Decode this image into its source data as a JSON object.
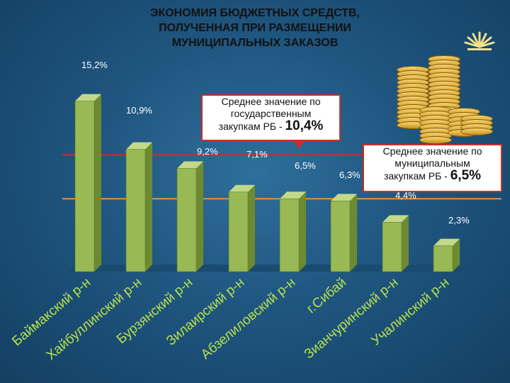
{
  "title_lines": [
    "ЭКОНОМИЯ БЮДЖЕТНЫХ СРЕДСТВ,",
    "ПОЛУЧЕННАЯ ПРИ РАЗМЕЩЕНИИ",
    "МУНИЦИПАЛЬНЫХ ЗАКАЗОВ"
  ],
  "callouts": {
    "state": {
      "lines": [
        "Среднее значение по",
        "государственным",
        "закупкам РБ - "
      ],
      "value": "10,4%"
    },
    "municipal": {
      "lines": [
        "Среднее значение по",
        "муниципальным",
        "закупкам РБ - "
      ],
      "value": "6,5%"
    }
  },
  "chart_data": {
    "type": "bar",
    "categories": [
      "Баймакский р-н",
      "Хайбуллинский р-н",
      "Бурзянский р-н",
      "Зилаирский р-н",
      "Абзелиловский р-н",
      "г.Сибай",
      "Зианчуринский р-н",
      "Учалинский р-н"
    ],
    "values": [
      15.2,
      10.9,
      9.2,
      7.1,
      6.5,
      6.3,
      4.4,
      2.3
    ],
    "data_labels": [
      "15,2%",
      "10,9%",
      "9,2%",
      "7,1%",
      "6,5%",
      "6,3%",
      "4,4%",
      "2,3%"
    ],
    "ylim": [
      0,
      16
    ],
    "reference_lines": [
      {
        "value": 10.4,
        "color": "#d42a22"
      },
      {
        "value": 6.5,
        "color": "#e8913a"
      }
    ],
    "bar_color": "#98b954",
    "bar_top_color": "#c3d98a",
    "bar_side_color": "#6d8a33"
  }
}
